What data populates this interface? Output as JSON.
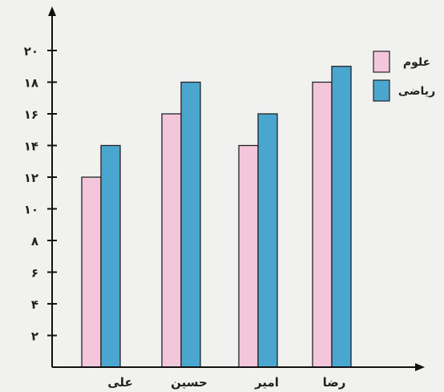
{
  "chart_data": {
    "type": "bar",
    "categories": [
      "علی",
      "حسین",
      "امیر",
      "رضا"
    ],
    "series": [
      {
        "name": "علوم",
        "values": [
          12,
          16,
          14,
          18
        ],
        "color": "#f4c6dc"
      },
      {
        "name": "ریاضی",
        "values": [
          14,
          18,
          16,
          19
        ],
        "color": "#4aa6cf"
      }
    ],
    "yticks": [
      2,
      4,
      6,
      8,
      10,
      12,
      14,
      16,
      18,
      20
    ],
    "ytick_labels": [
      "۲",
      "۴",
      "۶",
      "۸",
      "۱۰",
      "۱۲",
      "۱۴",
      "۱۶",
      "۱۸",
      "۲۰"
    ],
    "ylim": [
      0,
      20
    ],
    "legend_position": "top-right",
    "grid": false
  }
}
